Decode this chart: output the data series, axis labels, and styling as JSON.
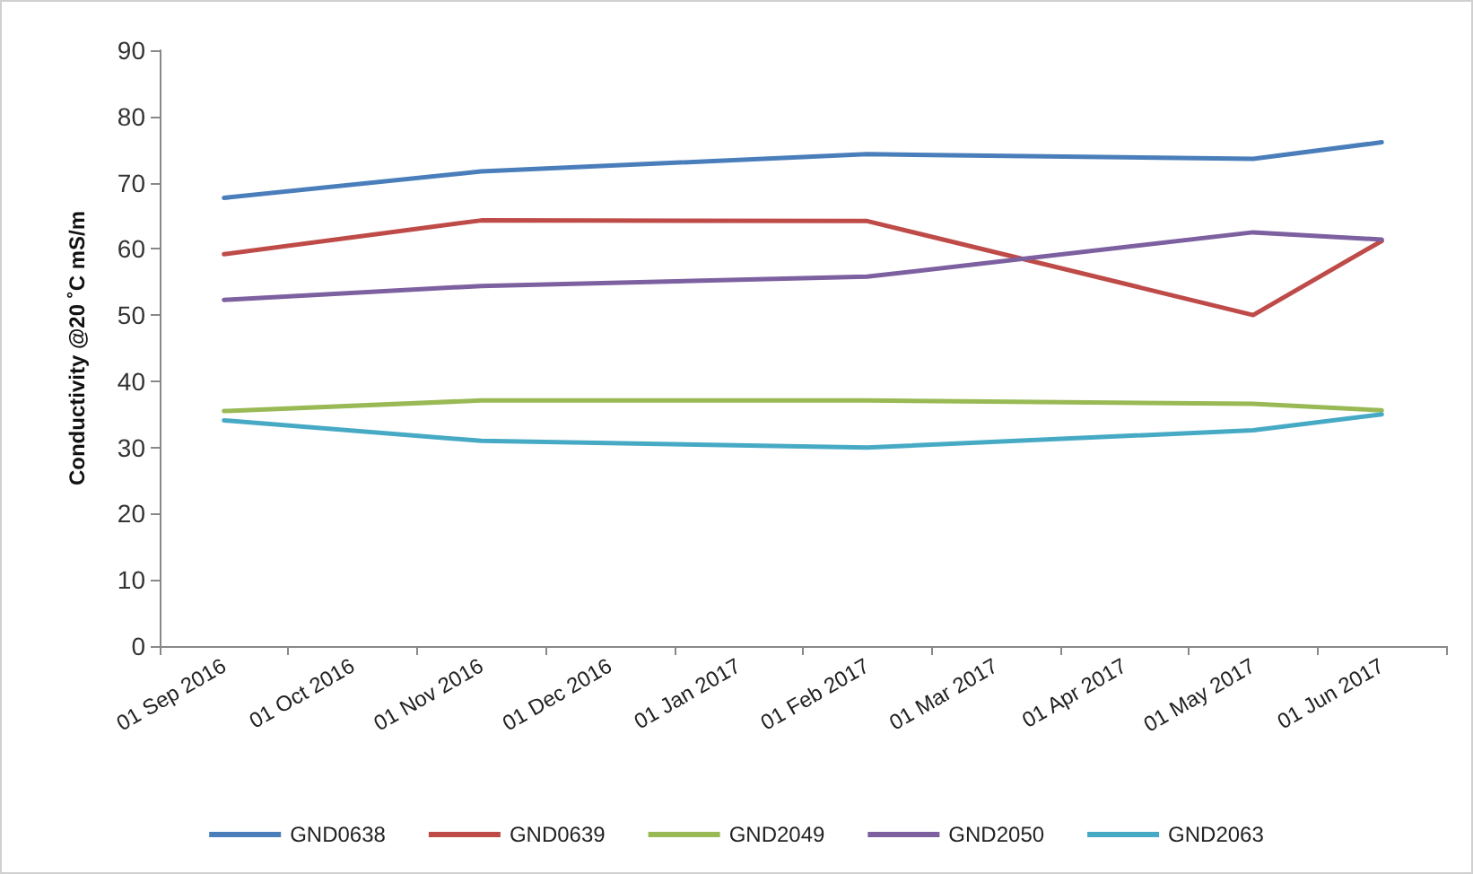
{
  "chart_data": {
    "type": "line",
    "ylabel": "Conductivity @20 ˚C mS/m",
    "categories": [
      "01 Sep 2016",
      "01 Oct 2016",
      "01 Nov 2016",
      "01 Dec 2016",
      "01 Jan 2017",
      "01 Feb 2017",
      "01 Mar 2017",
      "01 Apr 2017",
      "01 May 2017",
      "01 Jun 2017"
    ],
    "series": [
      {
        "name": "GND0638",
        "color": "#4a7ebb",
        "values": [
          67.7,
          null,
          71.7,
          null,
          null,
          74.3,
          null,
          null,
          73.6,
          76.1
        ]
      },
      {
        "name": "GND0639",
        "color": "#be4b48",
        "values": [
          59.2,
          null,
          64.3,
          null,
          null,
          64.2,
          null,
          null,
          50.0,
          61.2
        ]
      },
      {
        "name": "GND2049",
        "color": "#98b954",
        "values": [
          35.5,
          null,
          37.1,
          null,
          null,
          37.1,
          null,
          null,
          36.6,
          35.6
        ]
      },
      {
        "name": "GND2050",
        "color": "#7d60a0",
        "values": [
          52.3,
          null,
          54.4,
          null,
          null,
          55.8,
          null,
          null,
          62.5,
          61.4
        ]
      },
      {
        "name": "GND2063",
        "color": "#46aac5",
        "values": [
          34.1,
          null,
          31.0,
          null,
          null,
          30.0,
          null,
          null,
          32.6,
          35.0
        ]
      }
    ],
    "ylim": [
      0,
      90
    ],
    "yticks": [
      0,
      10,
      20,
      30,
      40,
      50,
      60,
      70,
      80,
      90
    ],
    "grid": false,
    "legend": "bottom",
    "marker": "none",
    "line_style": "solid"
  }
}
